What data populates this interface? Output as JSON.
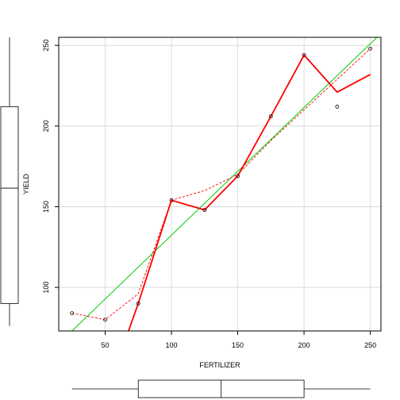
{
  "chart_data": {
    "type": "scatter",
    "title": "",
    "xlabel": "FERTILIZER",
    "ylabel": "YIELD",
    "xlim": [
      15,
      258
    ],
    "ylim": [
      73,
      255
    ],
    "grid": true,
    "xticks": [
      50,
      100,
      150,
      200,
      250
    ],
    "yticks": [
      100,
      150,
      200,
      250
    ],
    "points": {
      "x": [
        25,
        50,
        75,
        100,
        125,
        150,
        175,
        200,
        225,
        250
      ],
      "y": [
        84,
        80,
        90,
        154,
        148,
        169,
        206,
        244,
        212,
        248
      ]
    },
    "series": [
      {
        "kind": "regression-line",
        "style": "solid",
        "color": "#00cc00",
        "x": [
          25,
          255
        ],
        "y": [
          73,
          255
        ]
      },
      {
        "kind": "smoother",
        "style": "dashed",
        "color": "#ff0000",
        "x": [
          25,
          50,
          75,
          100,
          125,
          150,
          175,
          200,
          225,
          250
        ],
        "y": [
          84,
          80,
          96,
          154,
          160,
          170,
          191,
          210,
          229,
          248
        ]
      },
      {
        "kind": "smoother",
        "style": "solid-thick",
        "color": "#ff0000",
        "x": [
          62,
          75,
          100,
          125,
          150,
          175,
          200,
          225,
          250
        ],
        "y": [
          60,
          90,
          154,
          148,
          169,
          206,
          244,
          221,
          232
        ]
      }
    ],
    "marginal_boxplots": {
      "x": {
        "whisker_low": 25,
        "q1": 75,
        "median": 137.5,
        "q3": 200,
        "whisker_high": 250
      },
      "y": {
        "whisker_low": 80,
        "q1": 90,
        "median": 161.5,
        "q3": 212,
        "whisker_high": 248
      }
    }
  },
  "colors": {
    "regression": "#00cc00",
    "smoother": "#ff0000",
    "points": "#000000",
    "grid": "#d3d3d3"
  }
}
